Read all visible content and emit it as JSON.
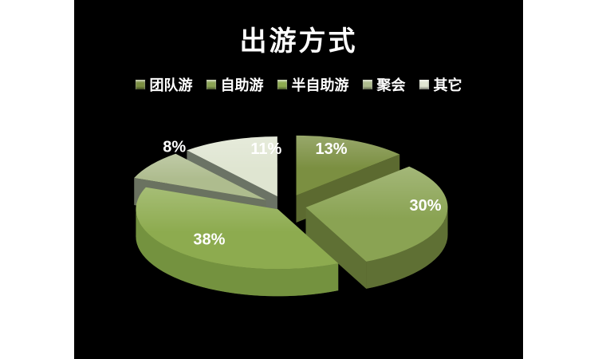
{
  "page": {
    "background": "#ffffff",
    "slide_background": "#000000"
  },
  "title": "出游方式",
  "text_color": "#ffffff",
  "chart_data": {
    "type": "pie",
    "title": "出游方式",
    "categories": [
      "团队游",
      "自助游",
      "半自助游",
      "聚会",
      "其它"
    ],
    "values": [
      13,
      30,
      38,
      8,
      11
    ],
    "unit": "%",
    "labels": [
      "13%",
      "30%",
      "38%",
      "8%",
      "11%"
    ],
    "colors": [
      {
        "top": "#7b8f41",
        "side": "#57662c",
        "wall": "#5c6a30"
      },
      {
        "top": "#8aa353",
        "side": "#5f7034",
        "wall": "#5f7034"
      },
      {
        "top": "#8dab4f",
        "side": "#74923f",
        "wall": "#5e6a42"
      },
      {
        "top": "#aebc8e",
        "side": "#6a7260",
        "wall": "#6a7260"
      },
      {
        "top": "#dfe5d1",
        "side": "#6b7365",
        "wall": "#6b7365"
      }
    ],
    "label_color": "#ffffff",
    "legend_position": "top",
    "background": "#000000",
    "effect": "3d-exploded"
  }
}
